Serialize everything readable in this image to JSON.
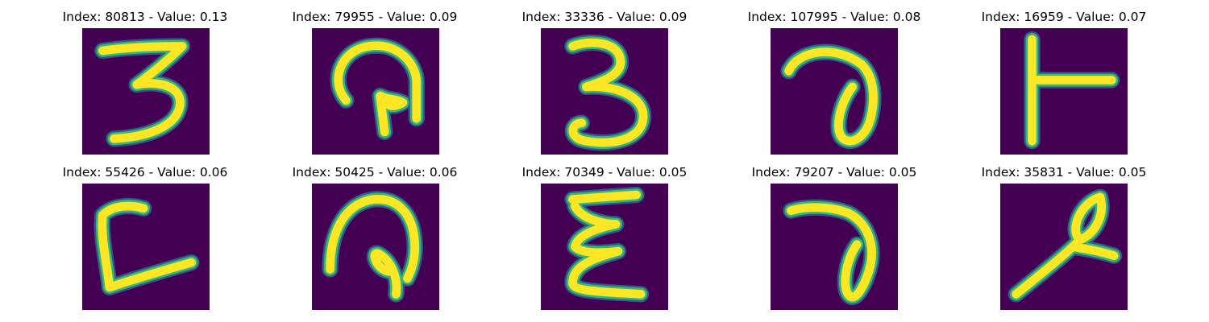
{
  "colors": {
    "background": "#440154",
    "stroke_low": "#31688e",
    "stroke_mid": "#35b779",
    "stroke_high": "#fde725",
    "title_text": "#000000"
  },
  "panels": [
    {
      "title": "Index: 80813 - Value: 0.13",
      "digit": "3"
    },
    {
      "title": "Index: 79955 - Value: 0.09",
      "digit": "loop with inner hook"
    },
    {
      "title": "Index: 33336 - Value: 0.09",
      "digit": "3"
    },
    {
      "title": "Index: 107995 - Value: 0.08",
      "digit": "hooked loop"
    },
    {
      "title": "Index: 16959 - Value: 0.07",
      "digit": "T-shape"
    },
    {
      "title": "Index: 55426 - Value: 0.06",
      "digit": "L-shape"
    },
    {
      "title": "Index: 50425 - Value: 0.06",
      "digit": "loop with inner hook"
    },
    {
      "title": "Index: 70349 - Value: 0.05",
      "digit": "E-shape"
    },
    {
      "title": "Index: 79207 - Value: 0.05",
      "digit": "hooked loop"
    },
    {
      "title": "Index: 35831 - Value: 0.05",
      "digit": "slanted stroke with loop"
    }
  ]
}
